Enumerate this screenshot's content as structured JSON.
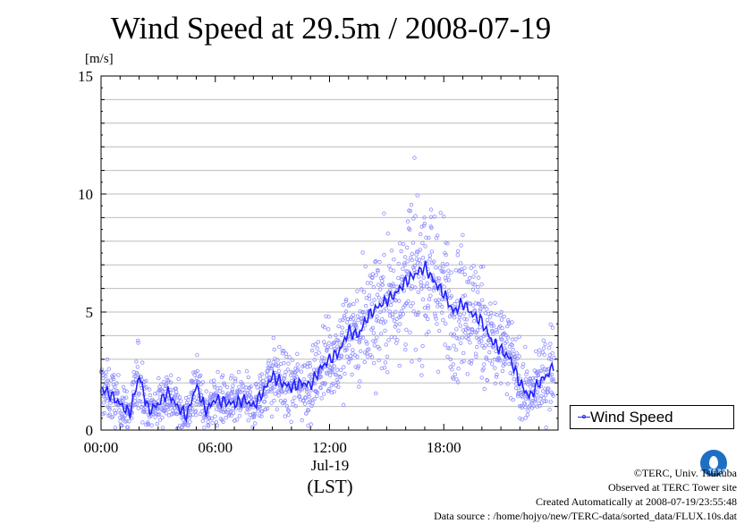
{
  "chart_data": {
    "type": "scatter",
    "title": "Wind Speed at 29.5m / 2008-07-19",
    "ylabel": "[m/s]",
    "ylim": [
      0,
      15
    ],
    "yticks": [
      "0",
      "5",
      "10",
      "15"
    ],
    "xlim": [
      0,
      24
    ],
    "xticks": [
      "00:00",
      "06:00",
      "12:00",
      "18:00"
    ],
    "xdate": "Jul-19",
    "xunit": "(LST)",
    "grid": true,
    "legend_position": "bottom-right",
    "series": [
      {
        "name": "Wind Speed",
        "color": "#2020ff",
        "hours": [
          0,
          0.5,
          1,
          1.5,
          2,
          2.5,
          3,
          3.5,
          4,
          4.5,
          5,
          5.5,
          6,
          6.5,
          7,
          7.5,
          8,
          8.5,
          9,
          9.5,
          10,
          10.5,
          11,
          11.5,
          12,
          12.5,
          13,
          13.5,
          14,
          14.5,
          15,
          15.5,
          16,
          16.5,
          17,
          17.5,
          18,
          18.5,
          19,
          19.5,
          20,
          20.5,
          21,
          21.5,
          22,
          22.5,
          23,
          23.5,
          23.8
        ],
        "mean": [
          1.8,
          1.5,
          1.1,
          0.7,
          2.3,
          0.8,
          1.1,
          1.6,
          1.0,
          0.6,
          1.9,
          0.8,
          1.3,
          1.2,
          1.1,
          1.3,
          1.0,
          1.6,
          2.3,
          2.0,
          1.8,
          2.0,
          1.9,
          2.6,
          3.0,
          3.3,
          4.2,
          4.0,
          4.8,
          5.2,
          5.5,
          5.8,
          6.3,
          6.6,
          6.9,
          6.3,
          5.8,
          5.0,
          5.4,
          4.9,
          4.6,
          3.8,
          3.4,
          3.0,
          2.0,
          1.4,
          2.0,
          2.4,
          2.8
        ]
      }
    ]
  },
  "legend": {
    "label": "Wind Speed"
  },
  "credits": {
    "copyright": "©TERC, Univ. Tsukuba",
    "site": "Observed at TERC Tower site",
    "created": "Created Automatically at 2008-07-19/23:55:48",
    "source": "Data source : /home/hojyo/new/TERC-data/sorted_data/FLUX.10s.dat"
  },
  "logo": {
    "text": "TERC"
  }
}
